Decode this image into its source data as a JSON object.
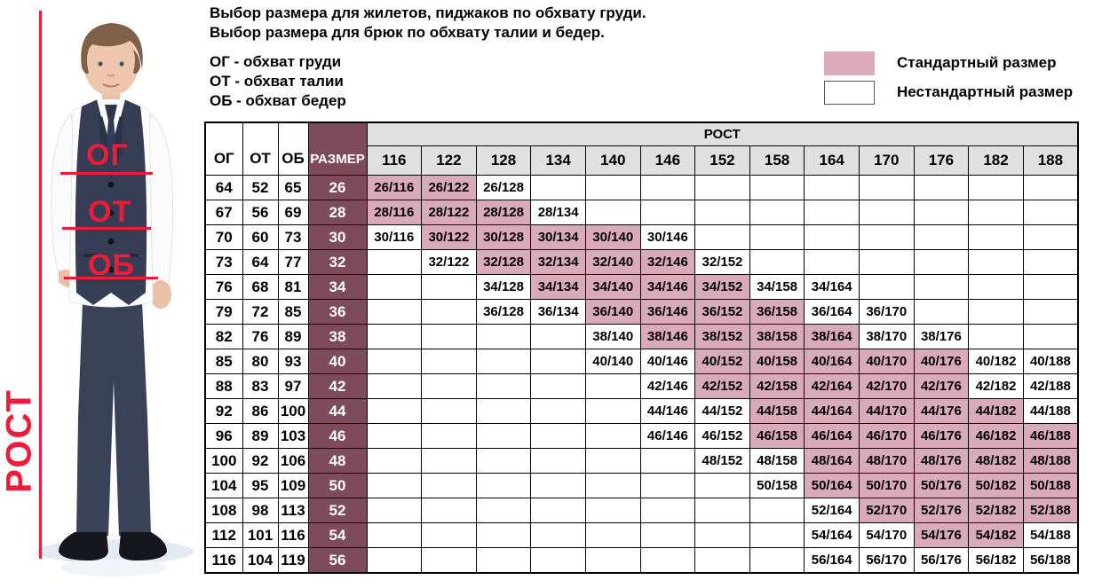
{
  "titles": {
    "line1": "Выбор размера для жилетов, пиджаков по обхвату груди.",
    "line2": "Выбор размера для брюк по обхвату талии и бедер.",
    "og_def": "ОГ - обхват груди",
    "ot_def": "ОТ - обхват талии",
    "ob_def": "ОБ - обхват бедер"
  },
  "legend": {
    "standard_label": "Стандартный размер",
    "nonstandard_label": "Нестандартный размер"
  },
  "figure": {
    "height_label": "РОСТ",
    "chest_label": "ОГ",
    "waist_label": "ОТ",
    "hip_label": "ОБ"
  },
  "colors": {
    "standard_pink": "#d9abba",
    "size_maroon": "#7d4b5c",
    "header_gray": "#e0e0e0",
    "annotation_red": "#ed1c3a"
  },
  "table": {
    "col_headers": {
      "og": "ОГ",
      "ot": "ОТ",
      "ob": "ОБ",
      "size": "РАЗМЕР",
      "rost": "РОСТ"
    },
    "heights": [
      116,
      122,
      128,
      134,
      140,
      146,
      152,
      158,
      164,
      170,
      176,
      182,
      188
    ],
    "rows": [
      {
        "og": 64,
        "ot": 52,
        "ob": 65,
        "size": 26,
        "cells": [
          {
            "label": "26/116",
            "standard": true
          },
          {
            "label": "26/122",
            "standard": true
          },
          {
            "label": "26/128",
            "standard": false
          },
          null,
          null,
          null,
          null,
          null,
          null,
          null,
          null,
          null,
          null
        ]
      },
      {
        "og": 67,
        "ot": 56,
        "ob": 69,
        "size": 28,
        "cells": [
          {
            "label": "28/116",
            "standard": true
          },
          {
            "label": "28/122",
            "standard": true
          },
          {
            "label": "28/128",
            "standard": true
          },
          {
            "label": "28/134",
            "standard": false
          },
          null,
          null,
          null,
          null,
          null,
          null,
          null,
          null,
          null
        ]
      },
      {
        "og": 70,
        "ot": 60,
        "ob": 73,
        "size": 30,
        "cells": [
          {
            "label": "30/116",
            "standard": false
          },
          {
            "label": "30/122",
            "standard": true
          },
          {
            "label": "30/128",
            "standard": true
          },
          {
            "label": "30/134",
            "standard": true
          },
          {
            "label": "30/140",
            "standard": true
          },
          {
            "label": "30/146",
            "standard": false
          },
          null,
          null,
          null,
          null,
          null,
          null,
          null
        ]
      },
      {
        "og": 73,
        "ot": 64,
        "ob": 77,
        "size": 32,
        "cells": [
          null,
          {
            "label": "32/122",
            "standard": false
          },
          {
            "label": "32/128",
            "standard": true
          },
          {
            "label": "32/134",
            "standard": true
          },
          {
            "label": "32/140",
            "standard": true
          },
          {
            "label": "32/146",
            "standard": true
          },
          {
            "label": "32/152",
            "standard": false
          },
          null,
          null,
          null,
          null,
          null,
          null
        ]
      },
      {
        "og": 76,
        "ot": 68,
        "ob": 81,
        "size": 34,
        "cells": [
          null,
          null,
          {
            "label": "34/128",
            "standard": false
          },
          {
            "label": "34/134",
            "standard": true
          },
          {
            "label": "34/140",
            "standard": true
          },
          {
            "label": "34/146",
            "standard": true
          },
          {
            "label": "34/152",
            "standard": true
          },
          {
            "label": "34/158",
            "standard": false
          },
          {
            "label": "34/164",
            "standard": false
          },
          null,
          null,
          null,
          null
        ]
      },
      {
        "og": 79,
        "ot": 72,
        "ob": 85,
        "size": 36,
        "cells": [
          null,
          null,
          {
            "label": "36/128",
            "standard": false
          },
          {
            "label": "36/134",
            "standard": false
          },
          {
            "label": "36/140",
            "standard": true
          },
          {
            "label": "36/146",
            "standard": true
          },
          {
            "label": "36/152",
            "standard": true
          },
          {
            "label": "36/158",
            "standard": true
          },
          {
            "label": "36/164",
            "standard": false
          },
          {
            "label": "36/170",
            "standard": false
          },
          null,
          null,
          null
        ]
      },
      {
        "og": 82,
        "ot": 76,
        "ob": 89,
        "size": 38,
        "cells": [
          null,
          null,
          null,
          null,
          {
            "label": "38/140",
            "standard": false
          },
          {
            "label": "38/146",
            "standard": true
          },
          {
            "label": "38/152",
            "standard": true
          },
          {
            "label": "38/158",
            "standard": true
          },
          {
            "label": "38/164",
            "standard": true
          },
          {
            "label": "38/170",
            "standard": false
          },
          {
            "label": "38/176",
            "standard": false
          },
          null,
          null
        ]
      },
      {
        "og": 85,
        "ot": 80,
        "ob": 93,
        "size": 40,
        "cells": [
          null,
          null,
          null,
          null,
          {
            "label": "40/140",
            "standard": false
          },
          {
            "label": "40/146",
            "standard": false
          },
          {
            "label": "40/152",
            "standard": true
          },
          {
            "label": "40/158",
            "standard": true
          },
          {
            "label": "40/164",
            "standard": true
          },
          {
            "label": "40/170",
            "standard": true
          },
          {
            "label": "40/176",
            "standard": true
          },
          {
            "label": "40/182",
            "standard": false
          },
          {
            "label": "40/188",
            "standard": false
          }
        ]
      },
      {
        "og": 88,
        "ot": 83,
        "ob": 97,
        "size": 42,
        "cells": [
          null,
          null,
          null,
          null,
          null,
          {
            "label": "42/146",
            "standard": false
          },
          {
            "label": "42/152",
            "standard": true
          },
          {
            "label": "42/158",
            "standard": true
          },
          {
            "label": "42/164",
            "standard": true
          },
          {
            "label": "42/170",
            "standard": true
          },
          {
            "label": "42/176",
            "standard": true
          },
          {
            "label": "42/182",
            "standard": false
          },
          {
            "label": "42/188",
            "standard": false
          }
        ]
      },
      {
        "og": 92,
        "ot": 86,
        "ob": 100,
        "size": 44,
        "cells": [
          null,
          null,
          null,
          null,
          null,
          {
            "label": "44/146",
            "standard": false
          },
          {
            "label": "44/152",
            "standard": false
          },
          {
            "label": "44/158",
            "standard": true
          },
          {
            "label": "44/164",
            "standard": true
          },
          {
            "label": "44/170",
            "standard": true
          },
          {
            "label": "44/176",
            "standard": true
          },
          {
            "label": "44/182",
            "standard": true
          },
          {
            "label": "44/188",
            "standard": false
          }
        ]
      },
      {
        "og": 96,
        "ot": 89,
        "ob": 103,
        "size": 46,
        "cells": [
          null,
          null,
          null,
          null,
          null,
          {
            "label": "46/146",
            "standard": false
          },
          {
            "label": "46/152",
            "standard": false
          },
          {
            "label": "46/158",
            "standard": true
          },
          {
            "label": "46/164",
            "standard": true
          },
          {
            "label": "46/170",
            "standard": true
          },
          {
            "label": "46/176",
            "standard": true
          },
          {
            "label": "46/182",
            "standard": true
          },
          {
            "label": "46/188",
            "standard": true
          }
        ]
      },
      {
        "og": 100,
        "ot": 92,
        "ob": 106,
        "size": 48,
        "cells": [
          null,
          null,
          null,
          null,
          null,
          null,
          {
            "label": "48/152",
            "standard": false
          },
          {
            "label": "48/158",
            "standard": false
          },
          {
            "label": "48/164",
            "standard": true
          },
          {
            "label": "48/170",
            "standard": true
          },
          {
            "label": "48/176",
            "standard": true
          },
          {
            "label": "48/182",
            "standard": true
          },
          {
            "label": "48/188",
            "standard": true
          }
        ]
      },
      {
        "og": 104,
        "ot": 95,
        "ob": 109,
        "size": 50,
        "cells": [
          null,
          null,
          null,
          null,
          null,
          null,
          null,
          {
            "label": "50/158",
            "standard": false
          },
          {
            "label": "50/164",
            "standard": true
          },
          {
            "label": "50/170",
            "standard": true
          },
          {
            "label": "50/176",
            "standard": true
          },
          {
            "label": "50/182",
            "standard": true
          },
          {
            "label": "50/188",
            "standard": true
          }
        ]
      },
      {
        "og": 108,
        "ot": 98,
        "ob": 113,
        "size": 52,
        "cells": [
          null,
          null,
          null,
          null,
          null,
          null,
          null,
          null,
          {
            "label": "52/164",
            "standard": false
          },
          {
            "label": "52/170",
            "standard": true
          },
          {
            "label": "52/176",
            "standard": true
          },
          {
            "label": "52/182",
            "standard": true
          },
          {
            "label": "52/188",
            "standard": true
          }
        ]
      },
      {
        "og": 112,
        "ot": 101,
        "ob": 116,
        "size": 54,
        "cells": [
          null,
          null,
          null,
          null,
          null,
          null,
          null,
          null,
          {
            "label": "54/164",
            "standard": false
          },
          {
            "label": "54/170",
            "standard": false
          },
          {
            "label": "54/176",
            "standard": true
          },
          {
            "label": "54/182",
            "standard": true
          },
          {
            "label": "54/188",
            "standard": false
          }
        ]
      },
      {
        "og": 116,
        "ot": 104,
        "ob": 119,
        "size": 56,
        "cells": [
          null,
          null,
          null,
          null,
          null,
          null,
          null,
          null,
          {
            "label": "56/164",
            "standard": false
          },
          {
            "label": "56/170",
            "standard": false
          },
          {
            "label": "56/176",
            "standard": false
          },
          {
            "label": "56/182",
            "standard": false
          },
          {
            "label": "56/188",
            "standard": false
          }
        ]
      }
    ]
  }
}
